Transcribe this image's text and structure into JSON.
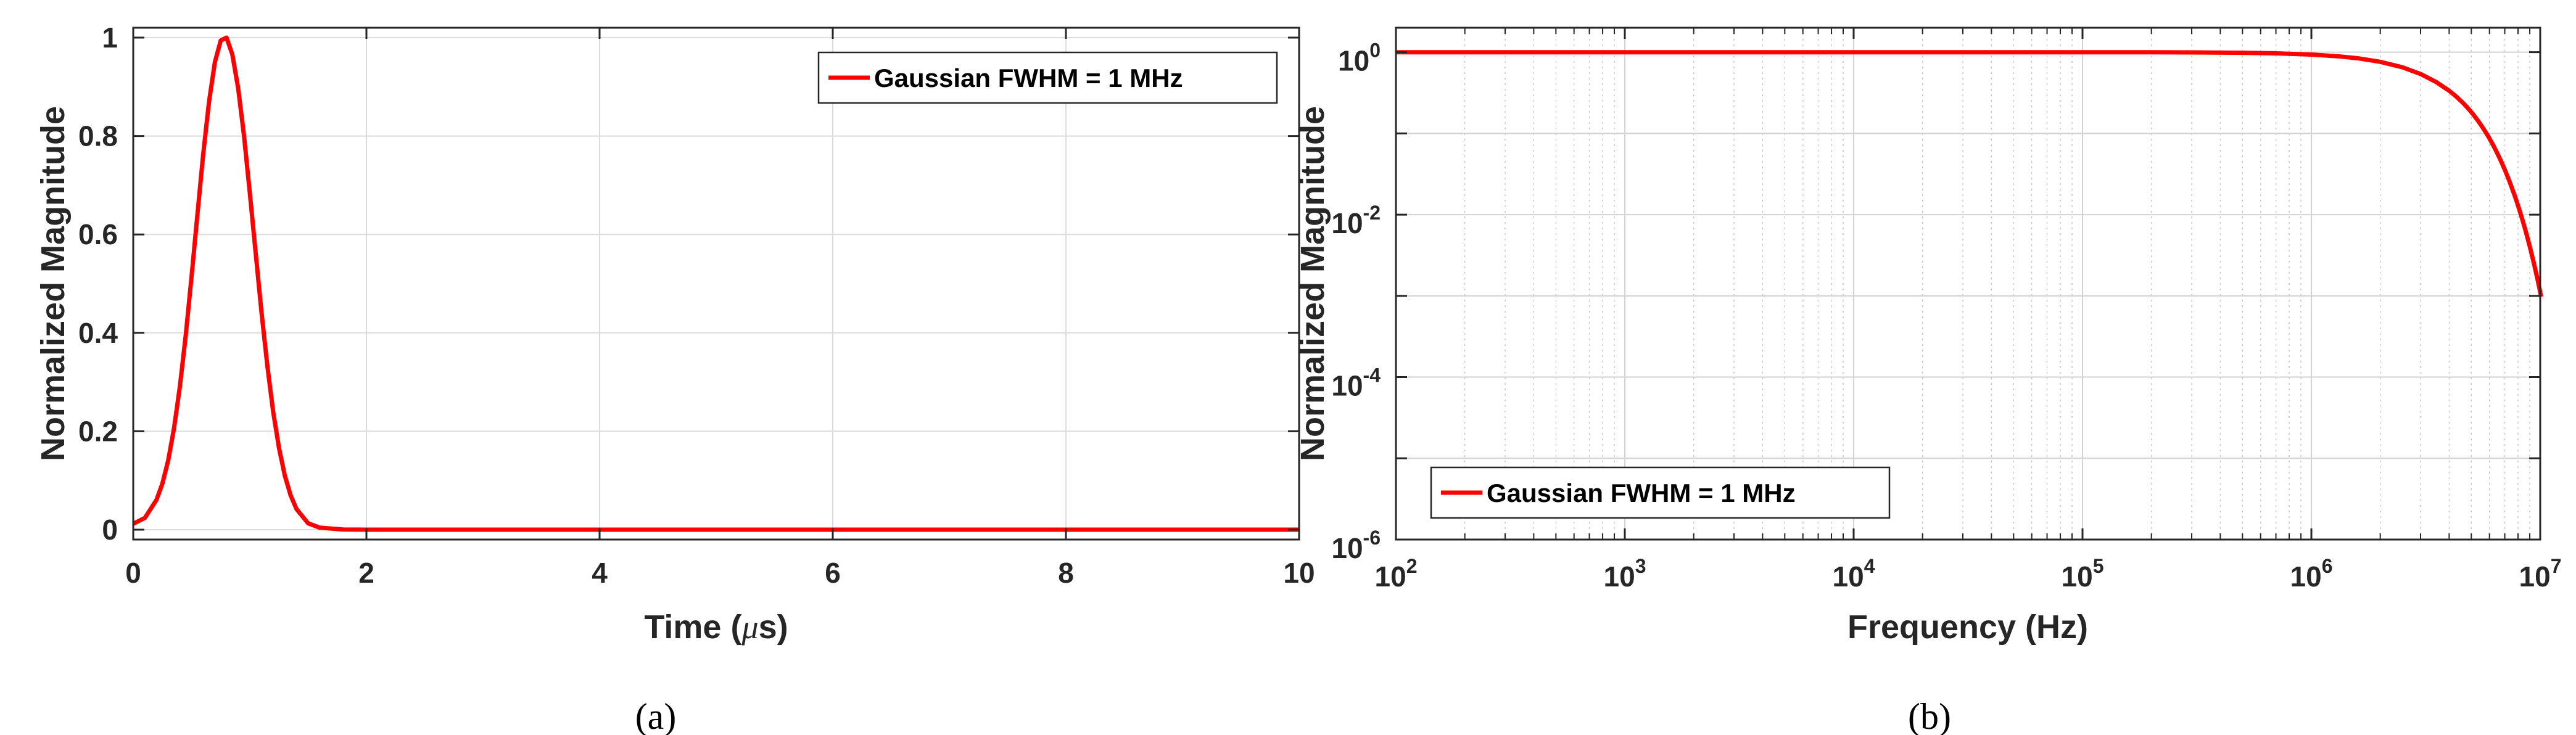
{
  "chart_data": [
    {
      "type": "line",
      "panel_label": "(a)",
      "xlabel_pre": "Time (",
      "xlabel_mu": "μ",
      "xlabel_post": "s)",
      "ylabel": "Normalized Magnitude",
      "xlim": [
        0,
        10
      ],
      "ylim": [
        -0.02,
        1.02
      ],
      "xticks": [
        0,
        2,
        4,
        6,
        8,
        10
      ],
      "xtick_labels": [
        "0",
        "2",
        "4",
        "6",
        "8",
        "10"
      ],
      "yticks": [
        0,
        0.2,
        0.4,
        0.6,
        0.8,
        1
      ],
      "ytick_labels": [
        "0",
        "0.2",
        "0.4",
        "0.6",
        "0.8",
        "1"
      ],
      "grid": true,
      "legend": "top-right",
      "series": [
        {
          "name": "Gaussian FWHM = 1 MHz",
          "color": "#ff0000",
          "x": [
            0,
            0.1,
            0.2,
            0.25,
            0.3,
            0.35,
            0.4,
            0.45,
            0.5,
            0.55,
            0.6,
            0.65,
            0.7,
            0.75,
            0.8,
            0.85,
            0.9,
            0.95,
            1.0,
            1.05,
            1.1,
            1.15,
            1.2,
            1.25,
            1.3,
            1.35,
            1.4,
            1.5,
            1.6,
            1.8,
            2,
            3,
            4,
            5,
            6,
            7,
            8,
            9,
            10
          ],
          "y": [
            0.012,
            0.024,
            0.061,
            0.094,
            0.141,
            0.206,
            0.291,
            0.395,
            0.514,
            0.64,
            0.763,
            0.87,
            0.95,
            0.994,
            1.0,
            0.966,
            0.897,
            0.8,
            0.684,
            0.562,
            0.442,
            0.333,
            0.24,
            0.166,
            0.11,
            0.07,
            0.042,
            0.013,
            0.004,
            0.0003,
            0,
            0,
            0,
            0,
            0,
            0,
            0,
            0,
            0
          ]
        }
      ]
    },
    {
      "type": "line",
      "panel_label": "(b)",
      "xlabel": "Frequency (Hz)",
      "ylabel": "Normalized Magnitude",
      "xscale": "log",
      "yscale": "log",
      "xlim": [
        100,
        10000000
      ],
      "ylim": [
        1e-06,
        2
      ],
      "xtick_exponents": [
        "2",
        "3",
        "4",
        "5",
        "6",
        "7"
      ],
      "ytick_exponents": [
        "0",
        "-2",
        "-4",
        "-6"
      ],
      "tick_base": "10",
      "grid": true,
      "legend": "bottom-left",
      "series": [
        {
          "name": "Gaussian FWHM = 1 MHz",
          "color": "#ff0000",
          "x": [
            100,
            1000,
            10000,
            100000,
            200000,
            300000,
            500000,
            700000,
            1000000,
            1300000,
            1600000,
            2000000,
            2500000,
            3000000,
            3500000,
            4000000,
            4300000,
            4600000
          ],
          "y": [
            1,
            1,
            1,
            0.9993,
            0.9974,
            0.9941,
            0.9836,
            0.9679,
            0.9347,
            0.8923,
            0.8408,
            0.7613,
            0.6525,
            0.5395,
            0.4317,
            0.3353,
            0.2838,
            0.2372
          ]
        }
      ]
    }
  ]
}
